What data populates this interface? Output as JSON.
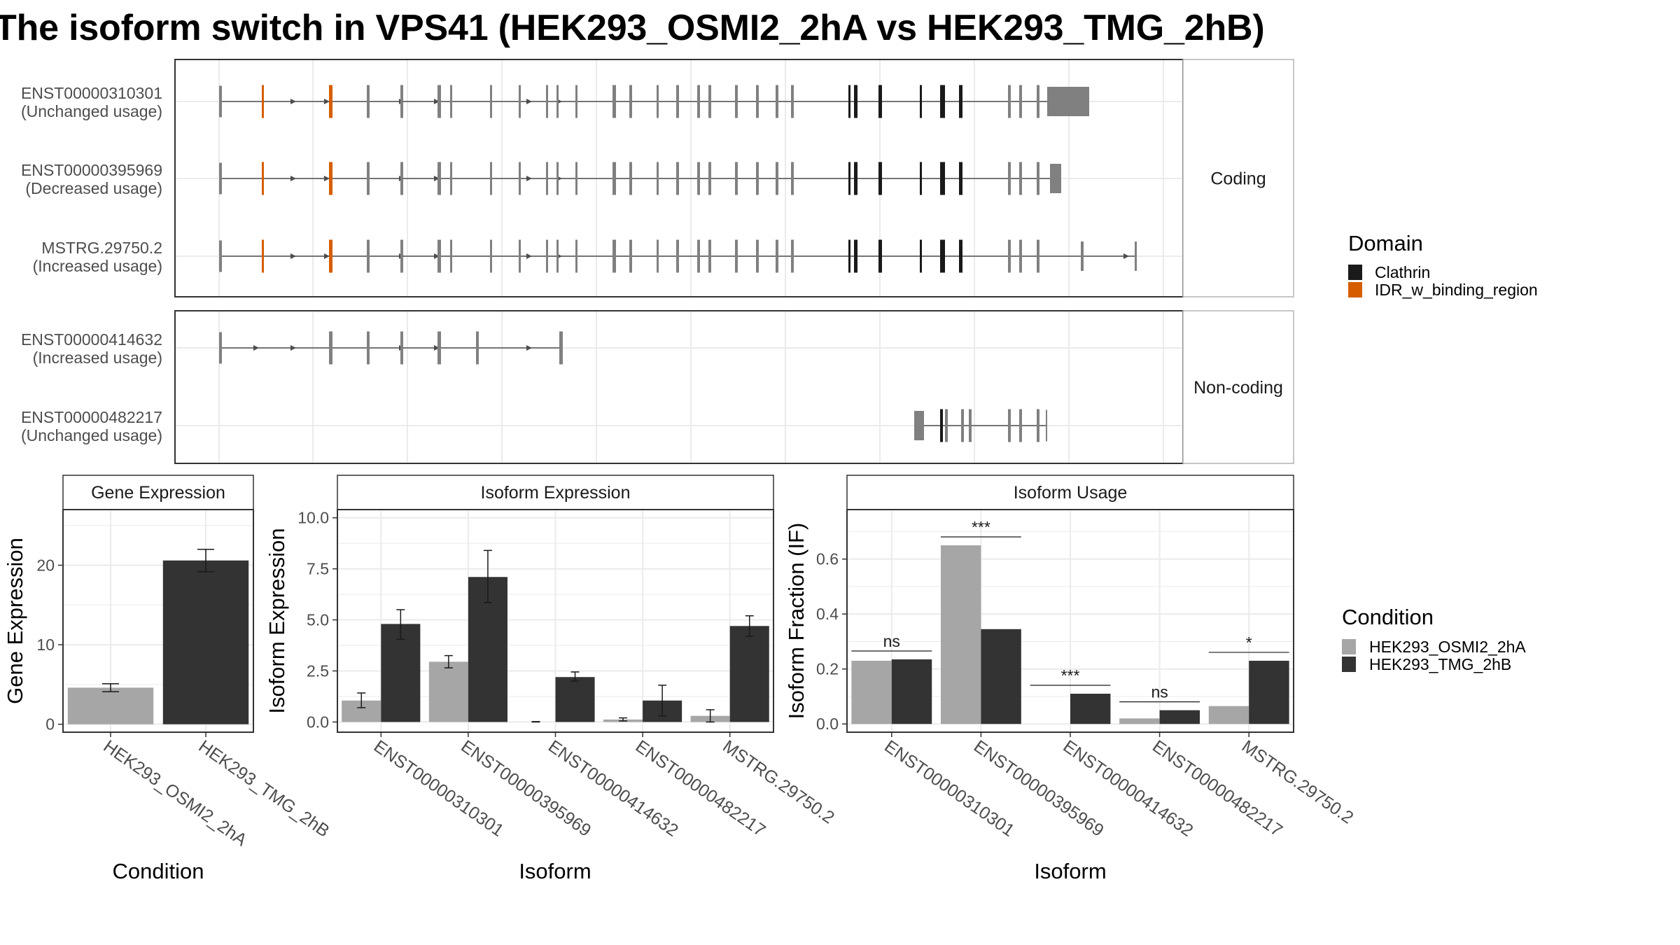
{
  "title": "The isoform switch in VPS41 (HEK293_OSMI2_2hA vs HEK293_TMG_2hB)",
  "colors": {
    "cond1": "#a6a6a6",
    "cond2": "#333333",
    "exon": "#808080",
    "clathrin": "#1a1a1a",
    "idr": "#d55e00",
    "line": "#4d4d4d",
    "panel_border": "#333333",
    "strip_border": "#b3b3b3",
    "grid": "#ebebeb"
  },
  "structure": {
    "facets": [
      "Coding",
      "Non-coding"
    ],
    "transcripts": [
      {
        "id": "ENST00000310301",
        "usage": "(Unchanged usage)",
        "facet": 0
      },
      {
        "id": "ENST00000395969",
        "usage": "(Decreased usage)",
        "facet": 0
      },
      {
        "id": "MSTRG.29750.2",
        "usage": "(Increased usage)",
        "facet": 0
      },
      {
        "id": "ENST00000414632",
        "usage": "(Increased usage)",
        "facet": 1
      },
      {
        "id": "ENST00000482217",
        "usage": "(Unchanged usage)",
        "facet": 1
      }
    ],
    "legend": {
      "title": "Domain",
      "items": [
        {
          "label": "Clathrin",
          "color": "#1a1a1a"
        },
        {
          "label": "IDR_w_binding_region",
          "color": "#d55e00"
        }
      ]
    }
  },
  "condition_legend": {
    "title": "Condition",
    "items": [
      {
        "label": "HEK293_OSMI2_2hA",
        "color": "#a6a6a6"
      },
      {
        "label": "HEK293_TMG_2hB",
        "color": "#333333"
      }
    ]
  },
  "chart_data": [
    {
      "type": "bar",
      "title": "Gene Expression",
      "xlabel": "Condition",
      "ylabel": "Gene Expression",
      "categories": [
        "HEK293_OSMI2_2hA",
        "HEK293_TMG_2hB"
      ],
      "values": [
        4.6,
        20.6
      ],
      "err_low": [
        4.1,
        19.2
      ],
      "err_high": [
        5.1,
        22.0
      ],
      "ylim": [
        -1,
        27
      ],
      "yticks": [
        0,
        10,
        20
      ]
    },
    {
      "type": "bar",
      "title": "Isoform Expression",
      "xlabel": "Isoform",
      "ylabel": "Isoform Expression",
      "categories": [
        "ENST00000310301",
        "ENST00000395969",
        "ENST00000414632",
        "ENST00000482217",
        "MSTRG.29750.2"
      ],
      "series": [
        {
          "name": "HEK293_OSMI2_2hA",
          "values": [
            1.05,
            2.95,
            0.0,
            0.12,
            0.3
          ],
          "err_low": [
            0.7,
            2.65,
            0.0,
            0.05,
            0.0
          ],
          "err_high": [
            1.42,
            3.25,
            0.02,
            0.2,
            0.6
          ]
        },
        {
          "name": "HEK293_TMG_2hB",
          "values": [
            4.8,
            7.1,
            2.2,
            1.05,
            4.7
          ],
          "err_low": [
            4.05,
            5.85,
            2.0,
            0.3,
            4.2
          ],
          "err_high": [
            5.5,
            8.4,
            2.45,
            1.8,
            5.2
          ]
        }
      ],
      "ylim": [
        -0.5,
        10.4
      ],
      "yticks": [
        "0.0",
        "2.5",
        "5.0",
        "7.5",
        "10.0"
      ]
    },
    {
      "type": "bar",
      "title": "Isoform Usage",
      "xlabel": "Isoform",
      "ylabel": "Isoform Fraction (IF)",
      "categories": [
        "ENST00000310301",
        "ENST00000395969",
        "ENST00000414632",
        "ENST00000482217",
        "MSTRG.29750.2"
      ],
      "series": [
        {
          "name": "HEK293_OSMI2_2hA",
          "values": [
            0.23,
            0.65,
            0.0,
            0.02,
            0.065
          ]
        },
        {
          "name": "HEK293_TMG_2hB",
          "values": [
            0.235,
            0.345,
            0.11,
            0.05,
            0.23
          ]
        }
      ],
      "significance": [
        "ns",
        "***",
        "***",
        "ns",
        "*"
      ],
      "ylim": [
        -0.03,
        0.78
      ],
      "yticks": [
        "0.0",
        "0.2",
        "0.4",
        "0.6"
      ]
    }
  ]
}
